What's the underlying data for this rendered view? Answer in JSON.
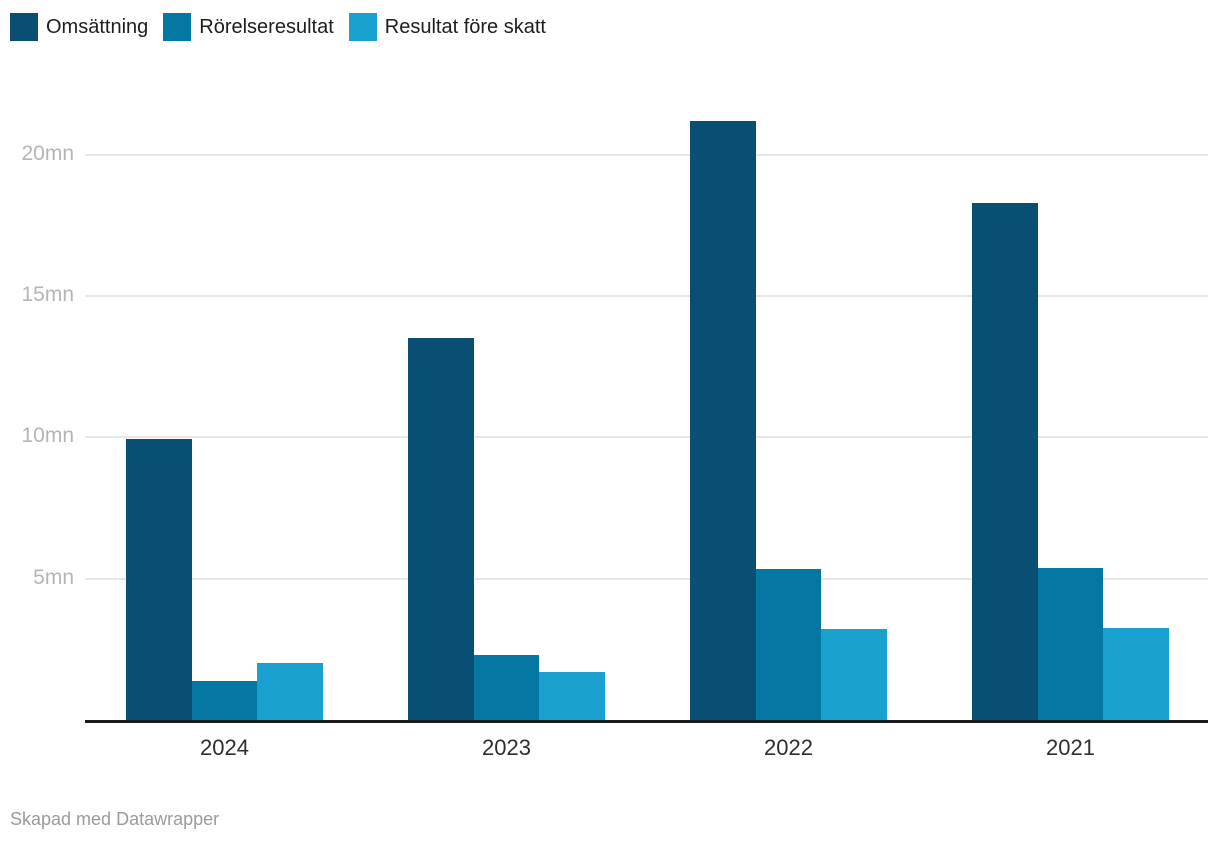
{
  "legend": {
    "items": [
      {
        "label": "Omsättning",
        "color": "#084F73"
      },
      {
        "label": "Rörelseresultat",
        "color": "#0477A2"
      },
      {
        "label": "Resultat före skatt",
        "color": "#1AA0CE"
      }
    ]
  },
  "footer": {
    "credit": "Skapad med Datawrapper"
  },
  "chart_data": {
    "type": "bar",
    "title": "",
    "categories": [
      "2024",
      "2023",
      "2022",
      "2021"
    ],
    "series": [
      {
        "name": "Omsättning",
        "color": "#084F73",
        "values": [
          9.95,
          13.5,
          21.2,
          18.3
        ]
      },
      {
        "name": "Rörelseresultat",
        "color": "#0477A2",
        "values": [
          1.39,
          2.3,
          5.34,
          5.36
        ]
      },
      {
        "name": "Resultat före skatt",
        "color": "#1AA0CE",
        "values": [
          2.03,
          1.71,
          3.23,
          3.24
        ]
      }
    ],
    "unit": "mn",
    "y_ticks": [
      5,
      10,
      15,
      20
    ],
    "y_tick_labels": [
      "5mn",
      "10mn",
      "15mn",
      "20mn"
    ],
    "ylim": [
      0,
      21.3
    ],
    "xlabel": "",
    "ylabel": "",
    "grid": true,
    "legend_position": "top-left",
    "credit": "Skapad med Datawrapper"
  }
}
